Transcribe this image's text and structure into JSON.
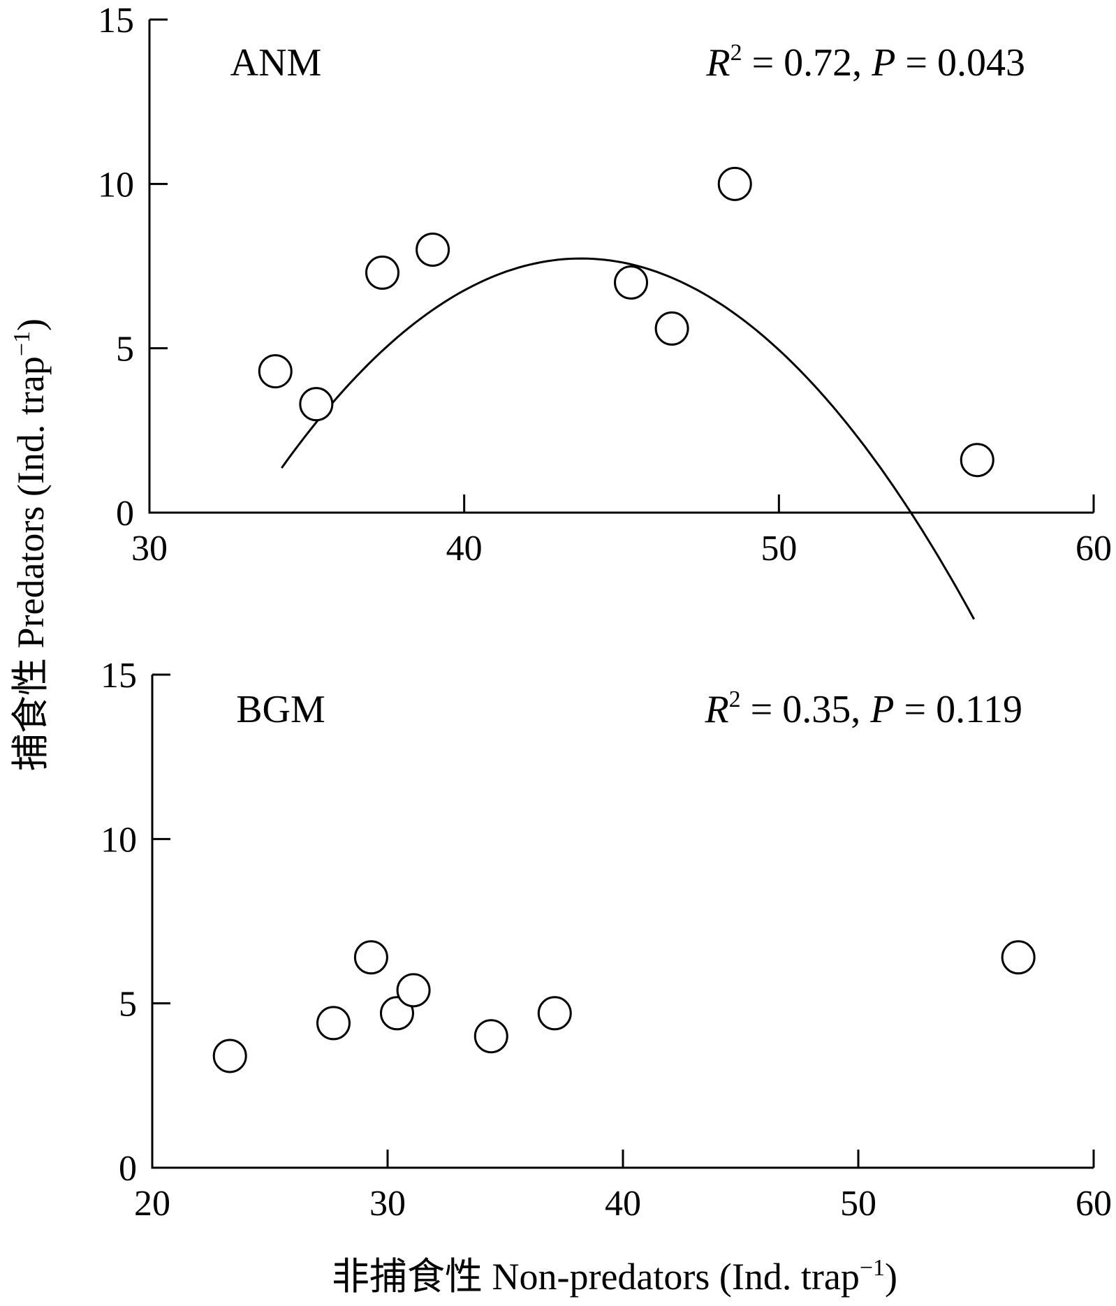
{
  "chart_data": [
    {
      "type": "scatter",
      "panel_label": "ANM",
      "stats": {
        "r2_label": "R",
        "r2_sup": "2",
        "r2_value": " = 0.72, ",
        "p_label": "P",
        "p_value": " = 0.043"
      },
      "xlim": [
        30,
        60
      ],
      "ylim": [
        0,
        15
      ],
      "xticks": [
        30,
        40,
        50,
        60
      ],
      "yticks": [
        0,
        5,
        10,
        15
      ],
      "xtick_labels": [
        "30",
        "40",
        "50",
        "60"
      ],
      "ytick_labels": [
        "0",
        "5",
        "10",
        "15"
      ],
      "points": [
        {
          "x": 34.0,
          "y": 4.3
        },
        {
          "x": 35.3,
          "y": 3.3
        },
        {
          "x": 37.4,
          "y": 7.3
        },
        {
          "x": 39.0,
          "y": 8.0
        },
        {
          "x": 45.3,
          "y": 7.0
        },
        {
          "x": 46.6,
          "y": 5.6
        },
        {
          "x": 48.6,
          "y": 10.0
        },
        {
          "x": 56.3,
          "y": 1.6
        }
      ],
      "fit": {
        "type": "quadratic",
        "coefficients": [
          -126.8,
          6.155,
          -0.0704
        ],
        "x_range": [
          34.2,
          56.2
        ]
      }
    },
    {
      "type": "scatter",
      "panel_label": "BGM",
      "stats": {
        "r2_label": "R",
        "r2_sup": "2",
        "r2_value": " = 0.35, ",
        "p_label": "P",
        "p_value": " = 0.119"
      },
      "xlim": [
        20,
        60
      ],
      "ylim": [
        0,
        15
      ],
      "xticks": [
        20,
        30,
        40,
        50,
        60
      ],
      "yticks": [
        0,
        5,
        10,
        15
      ],
      "xtick_labels": [
        "20",
        "30",
        "40",
        "50",
        "60"
      ],
      "ytick_labels": [
        "0",
        "5",
        "10",
        "15"
      ],
      "points": [
        {
          "x": 23.3,
          "y": 3.4
        },
        {
          "x": 27.7,
          "y": 4.4
        },
        {
          "x": 29.3,
          "y": 6.4
        },
        {
          "x": 30.4,
          "y": 4.7
        },
        {
          "x": 31.1,
          "y": 5.4
        },
        {
          "x": 34.4,
          "y": 4.0
        },
        {
          "x": 37.1,
          "y": 4.7
        },
        {
          "x": 56.8,
          "y": 6.4
        }
      ]
    }
  ],
  "axis_titles": {
    "y": "捕食性  Predators (Ind. trap",
    "y_sup": "−1",
    "y_close": ")",
    "x": "非捕食性 Non-predators (Ind. trap",
    "x_sup": "−1",
    "x_close": ")"
  }
}
